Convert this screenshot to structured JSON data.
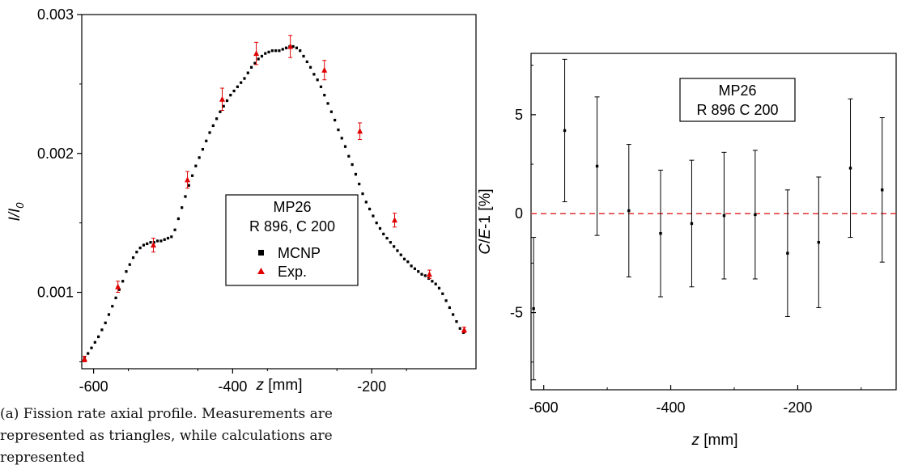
{
  "caption": "(a) Fission rate axial profile. Measurements are represented as triangles, while calculations are represented",
  "chart_data": [
    {
      "type": "scatter",
      "title": "",
      "xlabel": "z [mm]",
      "ylabel": "I/I0",
      "ylabel_main": "I/I",
      "ylabel_sub": "0",
      "xlabel_var": "z",
      "xlabel_unit": " [mm]",
      "xlim": [
        -617,
        -50
      ],
      "ylim": [
        0.00045,
        0.003
      ],
      "xticks": [
        -600,
        -400,
        -200
      ],
      "xtick_labels": [
        "-600",
        "-400",
        "-200"
      ],
      "yticks": [
        0.001,
        0.002,
        0.003
      ],
      "ytick_labels": [
        "0.001",
        "0.002",
        "0.003"
      ],
      "legend_title_lines": [
        "MP26",
        "R 896, C 200"
      ],
      "legend_position": "center",
      "colors": {
        "mcnp": "#000000",
        "exp": "#e00000"
      },
      "series": [
        {
          "name": "MCNP",
          "marker": "square",
          "x_start": -613,
          "x_step": 5,
          "values": [
            0.00053,
            0.00056,
            0.0006,
            0.00064,
            0.00068,
            0.00073,
            0.00078,
            0.00084,
            0.0009,
            0.00096,
            0.00102,
            0.00108,
            0.00115,
            0.0012,
            0.00125,
            0.00129,
            0.00132,
            0.00134,
            0.00135,
            0.00136,
            0.00136,
            0.00137,
            0.00137,
            0.00138,
            0.00139,
            0.0014,
            0.00145,
            0.00153,
            0.00161,
            0.00169,
            0.00177,
            0.00184,
            0.00191,
            0.00197,
            0.00203,
            0.00209,
            0.00215,
            0.0022,
            0.00225,
            0.0023,
            0.00234,
            0.00238,
            0.00242,
            0.00245,
            0.00248,
            0.00251,
            0.00254,
            0.00258,
            0.00262,
            0.00265,
            0.00268,
            0.0027,
            0.00272,
            0.00273,
            0.00274,
            0.00274,
            0.00274,
            0.00275,
            0.00276,
            0.00277,
            0.00277,
            0.00276,
            0.00274,
            0.0027,
            0.00266,
            0.00262,
            0.00257,
            0.00253,
            0.00248,
            0.00242,
            0.00236,
            0.0023,
            0.00224,
            0.00217,
            0.00211,
            0.00205,
            0.00198,
            0.00192,
            0.00185,
            0.00178,
            0.00171,
            0.00165,
            0.0016,
            0.00155,
            0.0015,
            0.00146,
            0.00142,
            0.00139,
            0.00136,
            0.00133,
            0.0013,
            0.00127,
            0.00124,
            0.00122,
            0.00119,
            0.00117,
            0.00115,
            0.00113,
            0.00112,
            0.0011,
            0.00108,
            0.00106,
            0.00103,
            0.00099,
            0.00094,
            0.00089,
            0.00084,
            0.00079,
            0.00074,
            0.00071
          ],
          "error": 1e-05
        },
        {
          "name": "Exp.",
          "marker": "triangle",
          "points": [
            {
              "x": -613,
              "y": 0.00052,
              "err": 2e-05
            },
            {
              "x": -565,
              "y": 0.00104,
              "err": 4e-05
            },
            {
              "x": -514,
              "y": 0.00134,
              "err": 5e-05
            },
            {
              "x": -465,
              "y": 0.00181,
              "err": 6e-05
            },
            {
              "x": -415,
              "y": 0.00239,
              "err": 8e-05
            },
            {
              "x": -366,
              "y": 0.00272,
              "err": 8e-05
            },
            {
              "x": -317,
              "y": 0.00277,
              "err": 8e-05
            },
            {
              "x": -268,
              "y": 0.0026,
              "err": 7e-05
            },
            {
              "x": -217,
              "y": 0.00216,
              "err": 6e-05
            },
            {
              "x": -167,
              "y": 0.00152,
              "err": 5e-05
            },
            {
              "x": -117,
              "y": 0.00113,
              "err": 3e-05
            },
            {
              "x": -67,
              "y": 0.00073,
              "err": 2e-05
            }
          ]
        }
      ]
    },
    {
      "type": "scatter",
      "title": "",
      "xlabel": "z [mm]",
      "ylabel": "C/E-1 [%]",
      "xlabel_var": "z",
      "xlabel_unit": " [mm]",
      "ylabel_var1": "C",
      "ylabel_var2": "E",
      "ylabel_rest": "-1 [%]",
      "xlim": [
        -620,
        -45
      ],
      "ylim": [
        -8.9,
        8.1
      ],
      "xticks": [
        -600,
        -400,
        -200
      ],
      "xtick_labels": [
        "-600",
        "-400",
        "-200"
      ],
      "yticks": [
        -5,
        0,
        5
      ],
      "ytick_labels": [
        "-5",
        "0",
        "5"
      ],
      "annotation_lines": [
        "MP26",
        "R 896 C 200"
      ],
      "reference_line": 0,
      "colors": {
        "points": "#000000",
        "reference": "#e03030"
      },
      "points": [
        {
          "x": -616,
          "y": -4.8,
          "err": 3.6
        },
        {
          "x": -567,
          "y": 4.2,
          "err": 3.6
        },
        {
          "x": -516,
          "y": 2.4,
          "err": 3.5
        },
        {
          "x": -466,
          "y": 0.15,
          "err": 3.35
        },
        {
          "x": -416,
          "y": -1.0,
          "err": 3.2
        },
        {
          "x": -367,
          "y": -0.5,
          "err": 3.2
        },
        {
          "x": -316,
          "y": -0.1,
          "err": 3.2
        },
        {
          "x": -267,
          "y": -0.05,
          "err": 3.25
        },
        {
          "x": -216,
          "y": -2.0,
          "err": 3.2
        },
        {
          "x": -167,
          "y": -1.45,
          "err": 3.3
        },
        {
          "x": -117,
          "y": 2.3,
          "err": 3.5
        },
        {
          "x": -67,
          "y": 1.2,
          "err": 3.65
        }
      ]
    }
  ]
}
